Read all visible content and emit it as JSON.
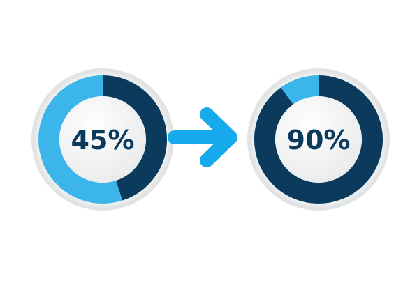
{
  "gauges": [
    {
      "label": "45%",
      "value": 0.45
    },
    {
      "label": "90%",
      "value": 0.9
    }
  ],
  "colors": {
    "filled": "#0b3a5d",
    "remaining": "#3bb5ea",
    "arrow": "#16a9ec",
    "label": "#0b3a5d",
    "bezel": "#e6e7e8"
  },
  "arrow_icon": "arrow-right-icon"
}
